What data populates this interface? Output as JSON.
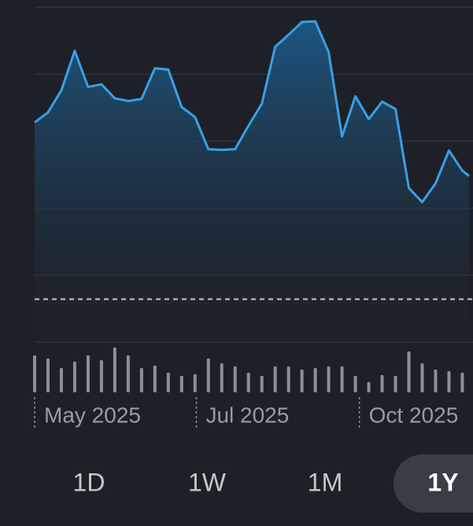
{
  "chart_data": [
    {
      "type": "line",
      "color": "#3a9fe6",
      "fill": true,
      "x": [
        0,
        1,
        2,
        3,
        4,
        5,
        6,
        7,
        8,
        9,
        10,
        11,
        12,
        13,
        14,
        15,
        16,
        17,
        18,
        19,
        20,
        21,
        22,
        23,
        24,
        25,
        26,
        27,
        28,
        29,
        30,
        31,
        32,
        32.5
      ],
      "values": [
        3.28,
        3.43,
        3.76,
        4.35,
        3.81,
        3.85,
        3.64,
        3.6,
        3.63,
        4.09,
        4.07,
        3.51,
        3.36,
        2.88,
        2.87,
        2.88,
        3.23,
        3.56,
        4.41,
        4.59,
        4.78,
        4.79,
        4.33,
        3.07,
        3.67,
        3.33,
        3.59,
        3.48,
        2.3,
        2.09,
        2.37,
        2.86,
        2.56,
        2.48
      ],
      "xlim": [
        0,
        32.8
      ],
      "ylim": [
        0,
        5.05
      ],
      "grid_values": [
        0,
        1,
        2,
        3,
        4,
        5
      ],
      "reference_line": 0.64,
      "xticks": [
        {
          "value": 0,
          "label": "May 2025"
        },
        {
          "value": 12.1,
          "label": "Jul 2025"
        },
        {
          "value": 24.3,
          "label": "Oct 2025"
        }
      ]
    },
    {
      "type": "bar",
      "color": "#8e9097",
      "x": [
        0,
        1,
        2,
        3,
        4,
        5,
        6,
        7,
        8,
        9,
        10,
        11,
        12,
        13,
        14,
        15,
        16,
        17,
        18,
        19,
        20,
        21,
        22,
        23,
        24,
        25,
        26,
        27,
        28,
        29,
        30,
        31,
        32
      ],
      "values": [
        47,
        43,
        31,
        39,
        47,
        41,
        57,
        47,
        31,
        34,
        25,
        21,
        23,
        43,
        37,
        33,
        25,
        21,
        33,
        33,
        29,
        31,
        33,
        33,
        21,
        13,
        22,
        21,
        52,
        37,
        29,
        27,
        25
      ],
      "ylim": [
        0,
        60
      ]
    }
  ],
  "range_buttons": {
    "options": [
      "1D",
      "1W",
      "1M",
      "1Y"
    ],
    "selected": 3
  }
}
